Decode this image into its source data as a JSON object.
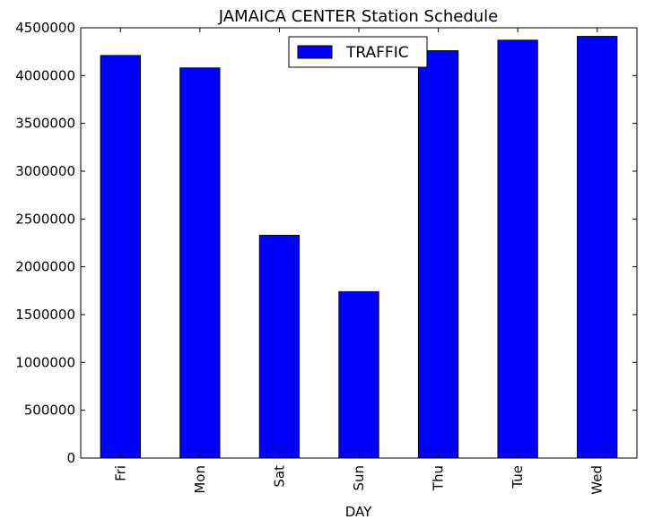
{
  "chart_data": {
    "type": "bar",
    "title": "JAMAICA CENTER Station Schedule",
    "xlabel": "DAY",
    "ylabel": "",
    "categories": [
      "Fri",
      "Mon",
      "Sat",
      "Sun",
      "Thu",
      "Tue",
      "Wed"
    ],
    "series": [
      {
        "name": "TRAFFIC",
        "values": [
          4210000,
          4080000,
          2330000,
          1740000,
          4260000,
          4370000,
          4410000
        ],
        "color": "#0000ff"
      }
    ],
    "ylim": [
      0,
      4500000
    ],
    "yticks": [
      0,
      500000,
      1000000,
      1500000,
      2000000,
      2500000,
      3000000,
      3500000,
      4000000,
      4500000
    ],
    "legend_position": "top-center",
    "grid": false
  }
}
